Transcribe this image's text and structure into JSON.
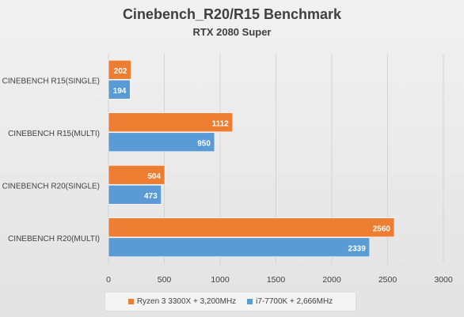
{
  "chart_data": {
    "type": "bar",
    "orientation": "horizontal",
    "title": "Cinebench_R20/R15 Benchmark",
    "subtitle": "RTX 2080 Super",
    "categories": [
      "CINEBENCH R15(SINGLE)",
      "CINEBENCH R15(MULTI)",
      "CINEBENCH R20(SINGLE)",
      "CINEBENCH R20(MULTI)"
    ],
    "series": [
      {
        "name": "Ryzen 3 3300X + 3,200MHz",
        "color": "#ED7D31",
        "values": [
          202,
          1112,
          504,
          2560
        ]
      },
      {
        "name": "i7-7700K + 2,666MHz",
        "color": "#5B9BD5",
        "values": [
          194,
          950,
          473,
          2339
        ]
      }
    ],
    "xlim": [
      0,
      3000
    ],
    "xticks": [
      0,
      500,
      1000,
      1500,
      2000,
      2500,
      3000
    ],
    "grid": true,
    "legend_position": "bottom"
  }
}
